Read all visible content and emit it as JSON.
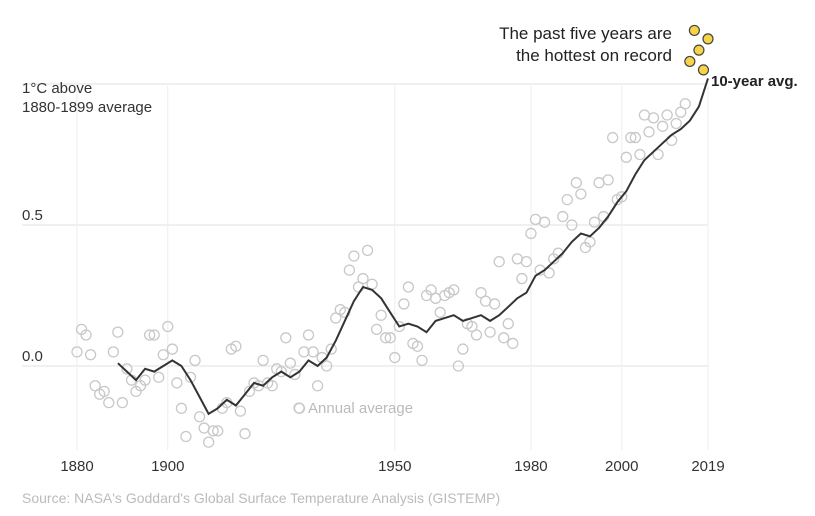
{
  "chart_data": {
    "type": "scatter",
    "y_title_lines": [
      "1°C above",
      "1880-1899 average"
    ],
    "x_ticks": [
      1880,
      1900,
      1950,
      1980,
      2000,
      2019
    ],
    "y_ticks": [
      {
        "value": 0.0,
        "label": "0.0"
      },
      {
        "value": 0.5,
        "label": "0.5"
      },
      {
        "value": 1.0,
        "label": ""
      }
    ],
    "xlim": [
      1880,
      2019
    ],
    "ylim": [
      -0.3,
      1.05
    ],
    "grid": "horizontal",
    "callout_lines": [
      "The past five years are",
      "the hottest on record"
    ],
    "avg_label": "10-year avg.",
    "annual_label": "Annual average",
    "highlight_from_year": 2015,
    "highlight_color": "#f5d547",
    "point_color": "#c8c8c8",
    "line_color": "#333333",
    "series": [
      {
        "name": "Annual average",
        "x": [
          1880,
          1881,
          1882,
          1883,
          1884,
          1885,
          1886,
          1887,
          1888,
          1889,
          1890,
          1891,
          1892,
          1893,
          1894,
          1895,
          1896,
          1897,
          1898,
          1899,
          1900,
          1901,
          1902,
          1903,
          1904,
          1905,
          1906,
          1907,
          1908,
          1909,
          1910,
          1911,
          1912,
          1913,
          1914,
          1915,
          1916,
          1917,
          1918,
          1919,
          1920,
          1921,
          1922,
          1923,
          1924,
          1925,
          1926,
          1927,
          1928,
          1929,
          1930,
          1931,
          1932,
          1933,
          1934,
          1935,
          1936,
          1937,
          1938,
          1939,
          1940,
          1941,
          1942,
          1943,
          1944,
          1945,
          1946,
          1947,
          1948,
          1949,
          1950,
          1951,
          1952,
          1953,
          1954,
          1955,
          1956,
          1957,
          1958,
          1959,
          1960,
          1961,
          1962,
          1963,
          1964,
          1965,
          1966,
          1967,
          1968,
          1969,
          1970,
          1971,
          1972,
          1973,
          1974,
          1975,
          1976,
          1977,
          1978,
          1979,
          1980,
          1981,
          1982,
          1983,
          1984,
          1985,
          1986,
          1987,
          1988,
          1989,
          1990,
          1991,
          1992,
          1993,
          1994,
          1995,
          1996,
          1997,
          1998,
          1999,
          2000,
          2001,
          2002,
          2003,
          2004,
          2005,
          2006,
          2007,
          2008,
          2009,
          2010,
          2011,
          2012,
          2013,
          2014,
          2015,
          2016,
          2017,
          2018,
          2019
        ],
        "y": [
          0.05,
          0.13,
          0.11,
          0.04,
          -0.07,
          -0.1,
          -0.09,
          -0.13,
          0.05,
          0.12,
          -0.13,
          -0.01,
          -0.05,
          -0.09,
          -0.07,
          -0.05,
          0.11,
          0.11,
          -0.04,
          0.04,
          0.14,
          0.06,
          -0.06,
          -0.15,
          -0.25,
          -0.04,
          0.02,
          -0.18,
          -0.22,
          -0.27,
          -0.23,
          -0.23,
          -0.15,
          -0.13,
          0.06,
          0.07,
          -0.16,
          -0.24,
          -0.09,
          -0.06,
          -0.07,
          0.02,
          -0.06,
          -0.07,
          -0.01,
          -0.02,
          0.1,
          0.01,
          -0.03,
          -0.15,
          0.05,
          0.11,
          0.05,
          -0.07,
          0.03,
          0.0,
          0.06,
          0.17,
          0.2,
          0.19,
          0.34,
          0.39,
          0.28,
          0.31,
          0.41,
          0.29,
          0.13,
          0.18,
          0.1,
          0.1,
          0.03,
          0.14,
          0.22,
          0.28,
          0.08,
          0.07,
          0.02,
          0.25,
          0.27,
          0.24,
          0.19,
          0.25,
          0.26,
          0.27,
          0.0,
          0.06,
          0.15,
          0.14,
          0.11,
          0.26,
          0.23,
          0.12,
          0.22,
          0.37,
          0.1,
          0.15,
          0.08,
          0.38,
          0.31,
          0.37,
          0.47,
          0.52,
          0.34,
          0.51,
          0.33,
          0.38,
          0.4,
          0.53,
          0.59,
          0.5,
          0.65,
          0.61,
          0.42,
          0.44,
          0.51,
          0.65,
          0.53,
          0.66,
          0.81,
          0.59,
          0.6,
          0.74,
          0.81,
          0.81,
          0.75,
          0.89,
          0.83,
          0.88,
          0.75,
          0.85,
          0.89,
          0.8,
          0.86,
          0.9,
          0.93,
          1.08,
          1.19,
          1.12,
          1.05,
          1.16
        ]
      },
      {
        "name": "10-year avg.",
        "x": [
          1889,
          1891,
          1893,
          1895,
          1897,
          1899,
          1901,
          1903,
          1905,
          1907,
          1909,
          1911,
          1913,
          1915,
          1917,
          1919,
          1921,
          1923,
          1925,
          1927,
          1929,
          1931,
          1933,
          1935,
          1937,
          1939,
          1941,
          1943,
          1945,
          1947,
          1949,
          1951,
          1953,
          1955,
          1957,
          1959,
          1961,
          1963,
          1965,
          1967,
          1969,
          1971,
          1973,
          1975,
          1977,
          1979,
          1981,
          1983,
          1985,
          1987,
          1989,
          1991,
          1993,
          1995,
          1997,
          1999,
          2001,
          2003,
          2005,
          2007,
          2009,
          2011,
          2013,
          2015,
          2017,
          2019
        ],
        "y": [
          0.01,
          -0.02,
          -0.05,
          -0.01,
          -0.02,
          0.0,
          0.02,
          0.0,
          -0.05,
          -0.11,
          -0.17,
          -0.15,
          -0.12,
          -0.14,
          -0.1,
          -0.06,
          -0.07,
          -0.04,
          -0.02,
          -0.04,
          -0.02,
          0.02,
          0.0,
          0.03,
          0.09,
          0.16,
          0.23,
          0.28,
          0.27,
          0.24,
          0.19,
          0.14,
          0.15,
          0.14,
          0.12,
          0.16,
          0.17,
          0.18,
          0.16,
          0.17,
          0.18,
          0.16,
          0.18,
          0.21,
          0.24,
          0.26,
          0.32,
          0.34,
          0.37,
          0.4,
          0.44,
          0.47,
          0.46,
          0.49,
          0.53,
          0.58,
          0.62,
          0.68,
          0.73,
          0.76,
          0.79,
          0.82,
          0.84,
          0.87,
          0.92,
          1.02
        ]
      }
    ]
  },
  "source": "Source: NASA's Goddard's Global Surface Temperature Analysis (GISTEMP)"
}
